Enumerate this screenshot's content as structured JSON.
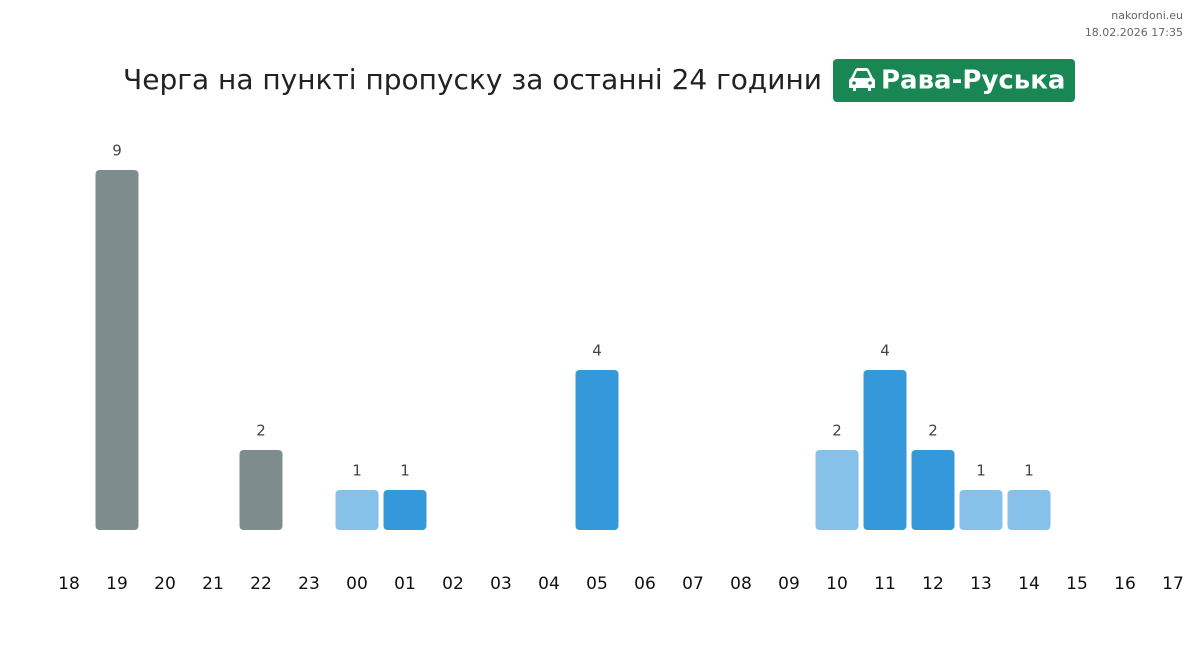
{
  "site": "nakordoni.eu",
  "timestamp": "18.02.2026 17:35",
  "chart_data": {
    "type": "bar",
    "title": "Черга на пункті пропуску за останні 24 години",
    "badge": "Рава-Руська",
    "categories": [
      "18",
      "19",
      "20",
      "21",
      "22",
      "23",
      "00",
      "01",
      "02",
      "03",
      "04",
      "05",
      "06",
      "07",
      "08",
      "09",
      "10",
      "11",
      "12",
      "13",
      "14",
      "15",
      "16",
      "17"
    ],
    "values": [
      null,
      9,
      null,
      null,
      2,
      null,
      1,
      1,
      null,
      null,
      null,
      4,
      null,
      null,
      null,
      null,
      2,
      4,
      2,
      1,
      1,
      null,
      null,
      null
    ],
    "colors": [
      null,
      "#7f8c8d",
      null,
      null,
      "#7f8c8d",
      null,
      "#85c1e9",
      "#3498db",
      null,
      null,
      null,
      "#3498db",
      null,
      null,
      null,
      null,
      "#85c1e9",
      "#3498db",
      "#3498db",
      "#85c1e9",
      "#85c1e9",
      null,
      null,
      null
    ]
  }
}
